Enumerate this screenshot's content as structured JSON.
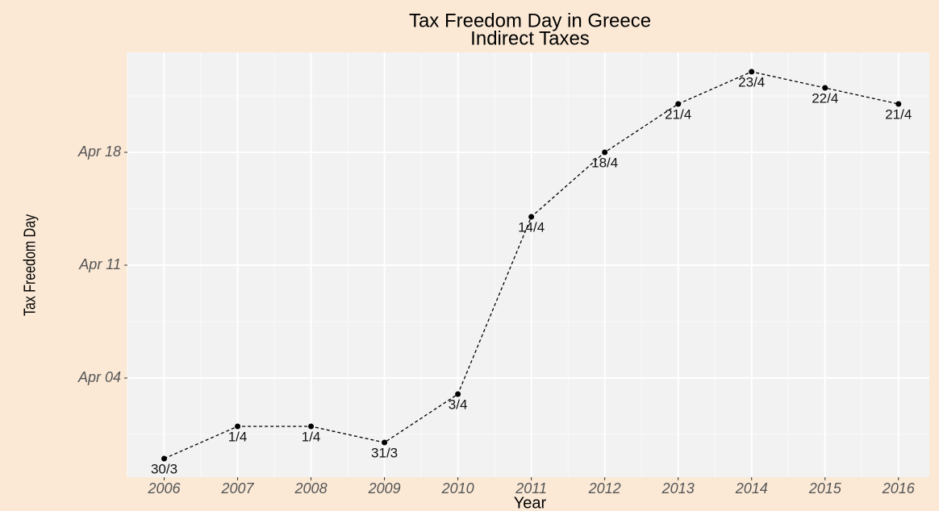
{
  "chart_data": {
    "type": "line",
    "title": "Tax Freedom Day in Greece",
    "subtitle": "Indirect Taxes",
    "x_label": "Year",
    "y_label": "Tax Freedom Day",
    "x": [
      2006,
      2007,
      2008,
      2009,
      2010,
      2011,
      2012,
      2013,
      2014,
      2015,
      2016
    ],
    "values": [
      89,
      91,
      91,
      90,
      93,
      104,
      108,
      111,
      113,
      112,
      111
    ],
    "value_labels": [
      "30/3",
      "1/4",
      "1/4",
      "31/3",
      "3/4",
      "14/4",
      "18/4",
      "21/4",
      "23/4",
      "22/4",
      "21/4"
    ],
    "color": "#000000",
    "xlim": [
      2005.5,
      2016.42
    ],
    "xticks": [
      2006,
      2007,
      2008,
      2009,
      2010,
      2011,
      2012,
      2013,
      2014,
      2015,
      2016
    ],
    "ylim": [
      87.85,
      114.2
    ],
    "yticks": [
      {
        "value": 94,
        "label": "Apr 04"
      },
      {
        "value": 101,
        "label": "Apr 11"
      },
      {
        "value": 108,
        "label": "Apr 18"
      }
    ],
    "grid": true
  }
}
